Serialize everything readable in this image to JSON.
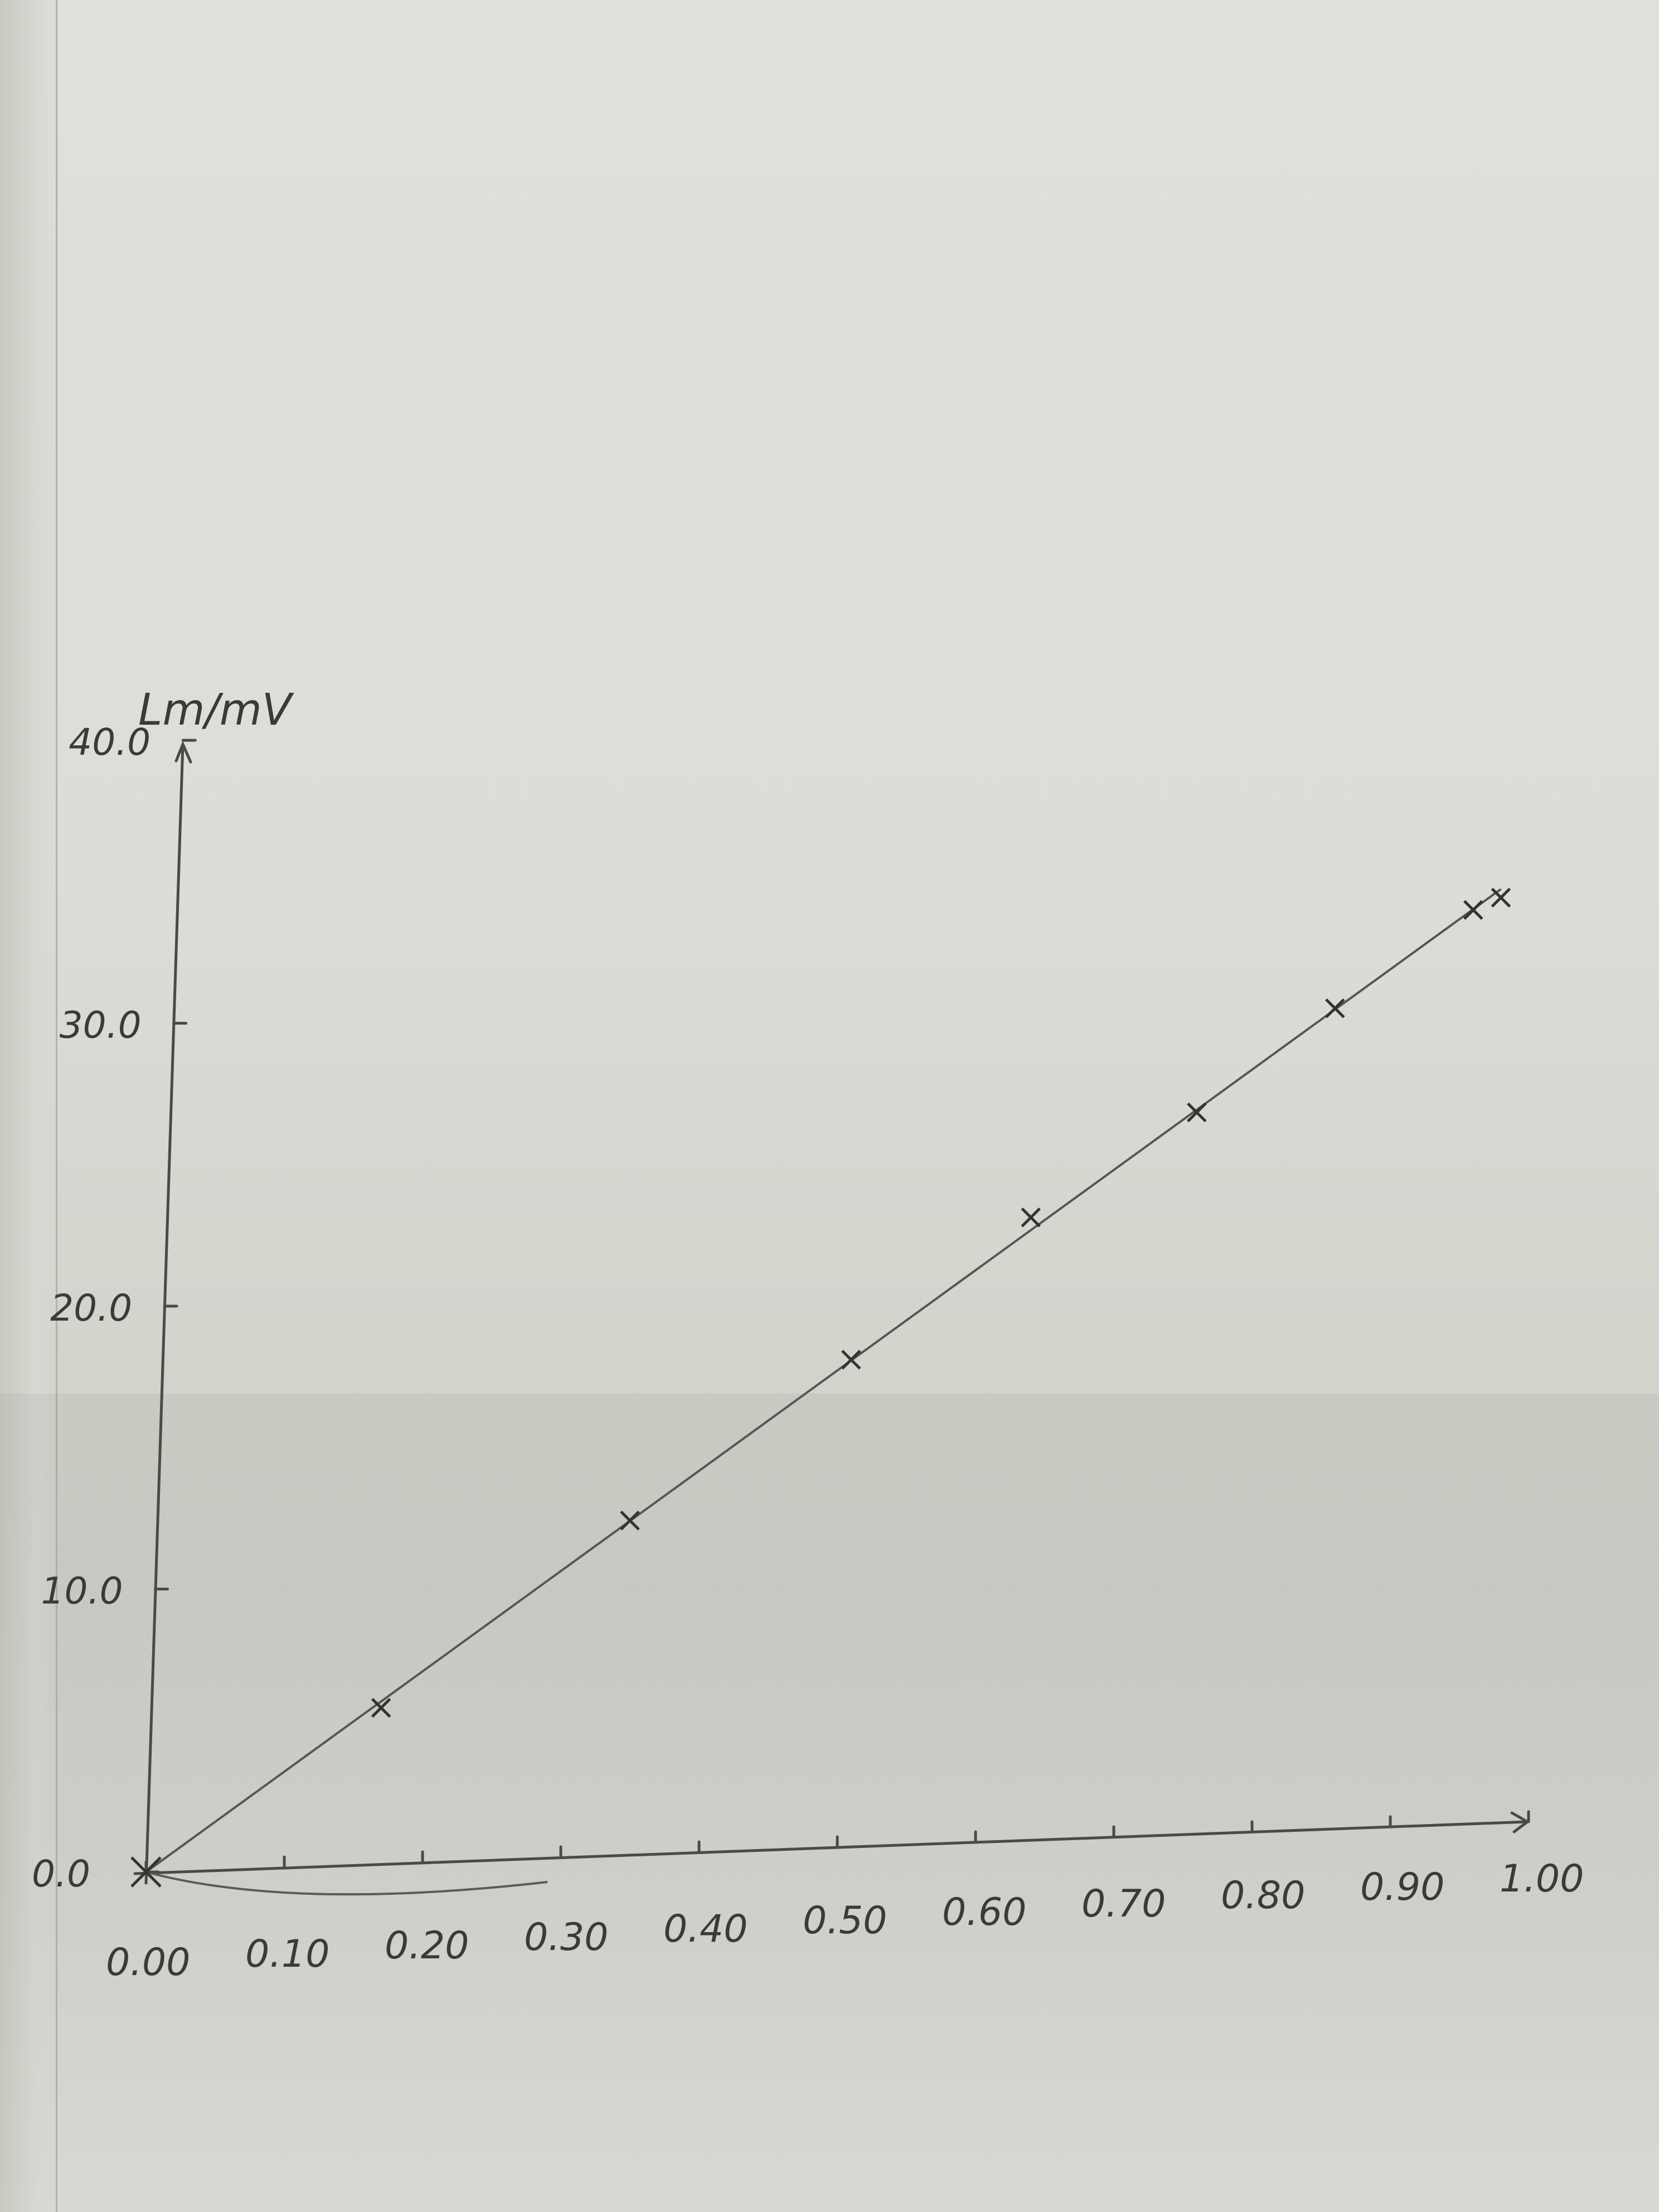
{
  "chart_data": {
    "type": "scatter",
    "title": "",
    "ylabel": "Lm/mV",
    "xlabel": "",
    "xlim": [
      0.0,
      1.0
    ],
    "ylim": [
      0.0,
      40.0
    ],
    "x_ticks": [
      "0.00",
      "0.10",
      "0.20",
      "0.30",
      "0.40",
      "0.50",
      "0.60",
      "0.70",
      "0.80",
      "0.90",
      "1.00"
    ],
    "y_ticks": [
      "0.0",
      "10.0",
      "20.0",
      "30.0",
      "40.0"
    ],
    "series": [
      {
        "x": [
          0.0,
          0.17,
          0.35,
          0.51,
          0.64,
          0.76,
          0.86,
          0.96,
          0.98
        ],
        "y": [
          0.0,
          5.5,
          11.8,
          17.2,
          22.0,
          25.5,
          29.0,
          32.3,
          32.7
        ]
      }
    ],
    "fit_line": {
      "x": [
        0.0,
        0.98
      ],
      "y": [
        0.0,
        33.0
      ]
    },
    "grid": false,
    "legend": "none"
  }
}
